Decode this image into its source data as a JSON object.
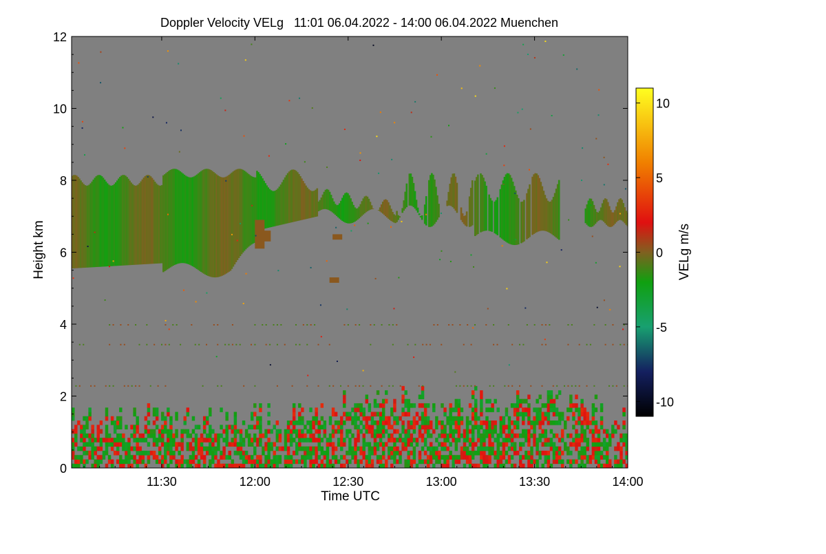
{
  "chart_data": {
    "type": "heatmap",
    "title": "Doppler Velocity VELg   11:01 06.04.2022 - 14:00 06.04.2022 Muenchen",
    "xlabel": "Time UTC",
    "ylabel": "Height km",
    "x_range_minutes": [
      661,
      840
    ],
    "x_ticks": [
      {
        "label": "11:30",
        "minute": 690
      },
      {
        "label": "12:00",
        "minute": 720
      },
      {
        "label": "12:30",
        "minute": 750
      },
      {
        "label": "13:00",
        "minute": 780
      },
      {
        "label": "13:30",
        "minute": 810
      },
      {
        "label": "14:00",
        "minute": 840
      }
    ],
    "ylim": [
      0,
      12
    ],
    "y_ticks": [
      0,
      2,
      4,
      6,
      8,
      10,
      12
    ],
    "colorbar": {
      "label": "VELg m/s",
      "range": [
        -11,
        11
      ],
      "ticks": [
        -10,
        -5,
        0,
        5,
        10
      ],
      "stops": [
        {
          "value": -11,
          "color": "#000000"
        },
        {
          "value": -8,
          "color": "#142060"
        },
        {
          "value": -5,
          "color": "#18a070"
        },
        {
          "value": -2,
          "color": "#10a010"
        },
        {
          "value": 0,
          "color": "#806020"
        },
        {
          "value": 2,
          "color": "#e01010"
        },
        {
          "value": 6,
          "color": "#f08000"
        },
        {
          "value": 11,
          "color": "#ffff20"
        }
      ]
    },
    "background_color": "#808080",
    "regions": [
      {
        "name": "upper-cloud-layer",
        "t_start": 661,
        "t_end": 840,
        "height_base_km": 5.6,
        "height_top_km": 8.3,
        "velocity_ms": -1
      },
      {
        "name": "boundary-layer",
        "t_start": 661,
        "t_end": 840,
        "height_base_km": 0,
        "height_top_km": 2.3,
        "velocity_ms": -1
      }
    ]
  }
}
